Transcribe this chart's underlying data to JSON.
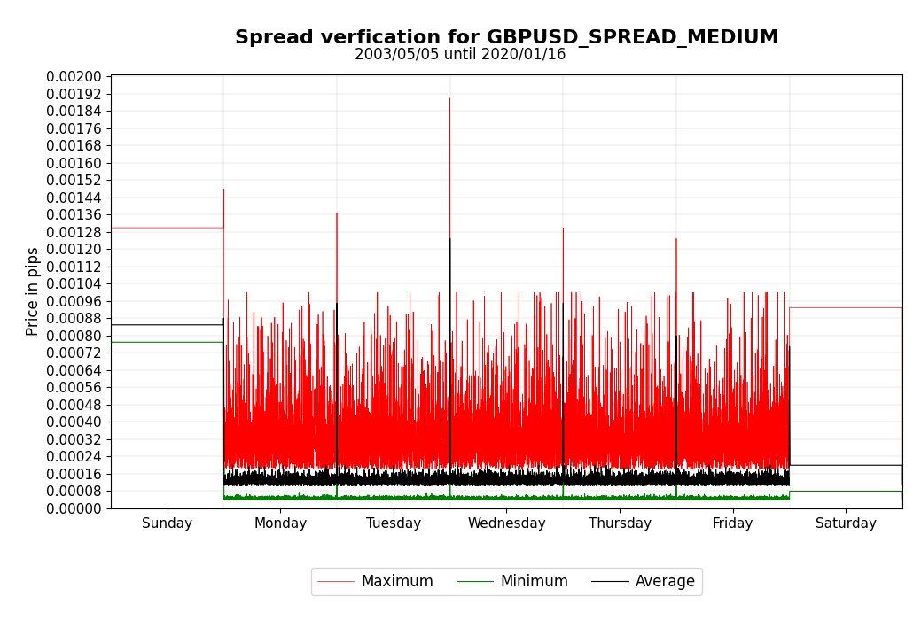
{
  "title": "Spread verfication for GBPUSD_SPREAD_MEDIUM",
  "subtitle": "2003/05/05 until 2020/01/16",
  "ylabel": "Price in pips",
  "x_labels": [
    "Sunday",
    "Monday",
    "Tuesday",
    "Wednesday",
    "Thursday",
    "Friday",
    "Saturday"
  ],
  "ylim": [
    0.0,
    0.00201
  ],
  "ytick_step": 8e-05,
  "color_max": "red",
  "color_min": "green",
  "color_avg": "black",
  "legend_labels": [
    "Maximum",
    "Minimum",
    "Average"
  ],
  "title_fontsize": 16,
  "subtitle_fontsize": 12,
  "label_fontsize": 12,
  "tick_fontsize": 11,
  "sunday_max": 0.0013,
  "sunday_avg": 0.00085,
  "sunday_min": 0.00077,
  "saturday_max": 0.00093,
  "saturday_avg": 0.0002,
  "saturday_min": 8e-05,
  "weekday_avg_base": 0.000105,
  "weekday_min_base": 4e-05,
  "weekday_max_base": 0.00025,
  "spike_max": [
    0.00148,
    0.00137,
    0.0019,
    0.0013,
    0.00125,
    0.00093
  ],
  "spike_avg": [
    0.00088,
    0.00095,
    0.00125,
    0.00095,
    0.0008,
    0.00075
  ]
}
